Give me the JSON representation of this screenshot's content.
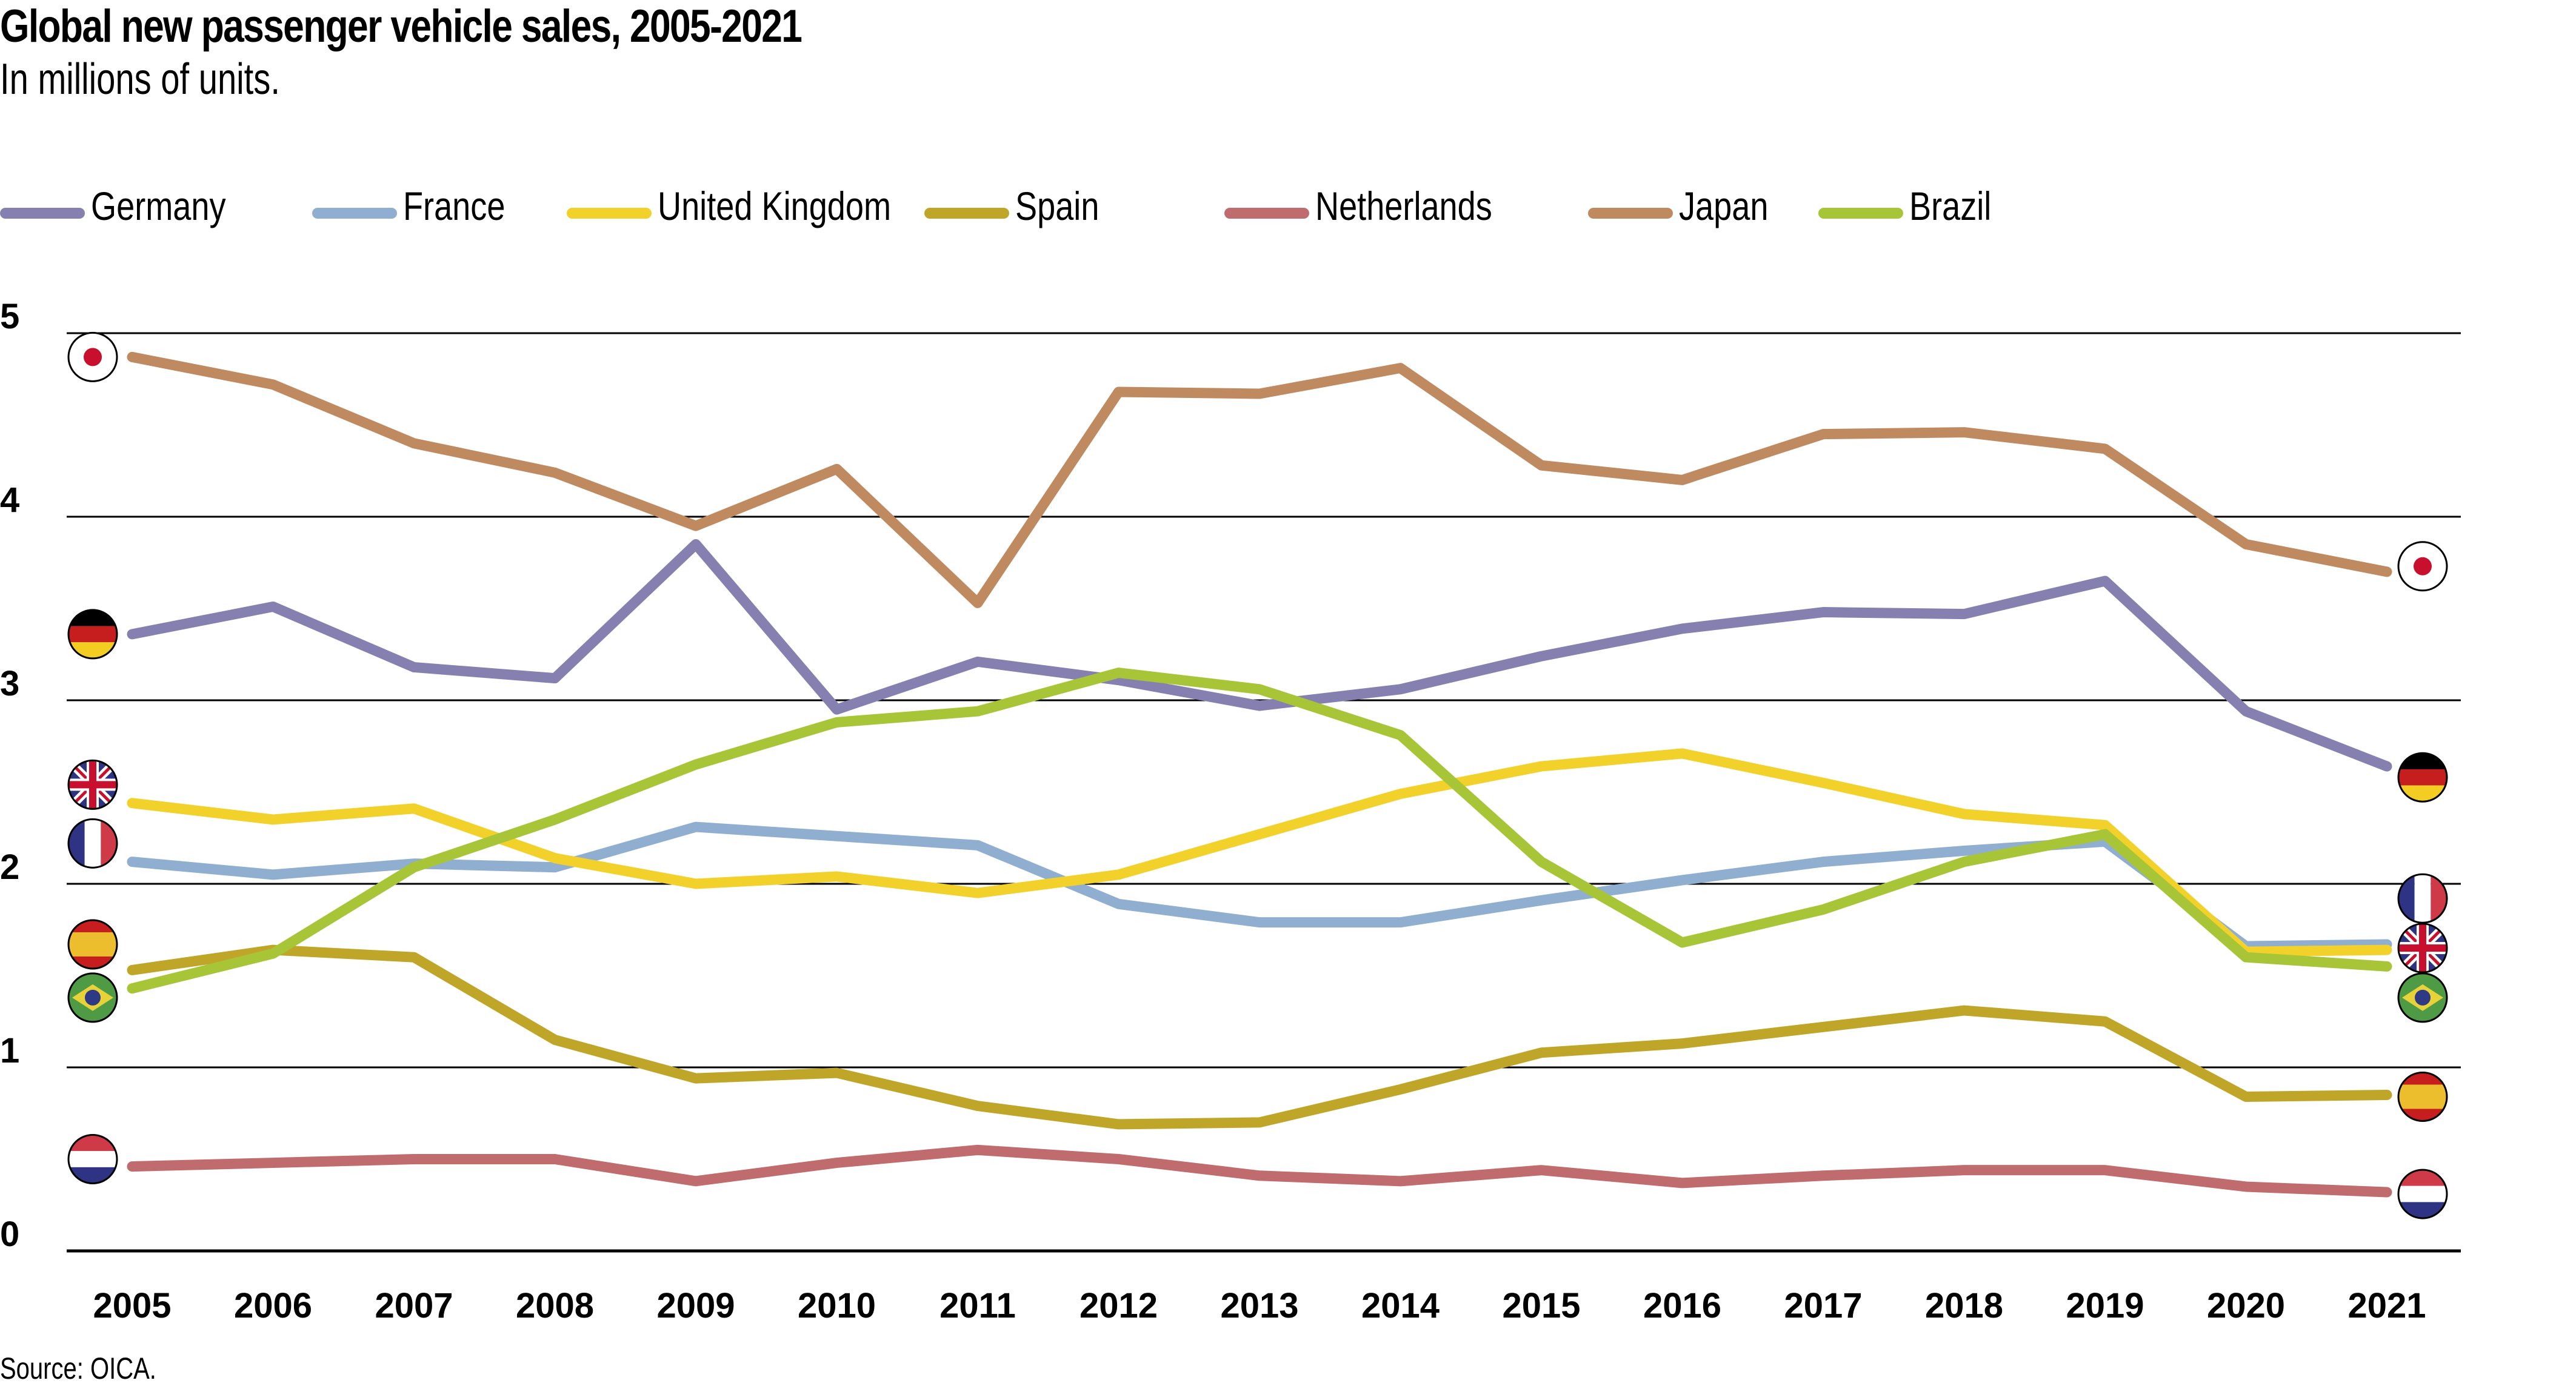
{
  "chart_data": {
    "type": "line",
    "title": "Global new passenger vehicle sales, 2005-2021",
    "subtitle": "In millions of units.",
    "source": "Source: OICA.",
    "xlabel": "",
    "ylabel": "",
    "ylim": [
      0,
      5
    ],
    "yticks": [
      "0",
      "1",
      "2",
      "3",
      "4",
      "5"
    ],
    "grid": true,
    "legend_position": "top-left",
    "x": [
      "2005",
      "2006",
      "2007",
      "2008",
      "2009",
      "2010",
      "2011",
      "2012",
      "2013",
      "2014",
      "2015",
      "2016",
      "2017",
      "2018",
      "2019",
      "2020",
      "2021"
    ],
    "series": [
      {
        "name": "Germany",
        "color": "#8680b0",
        "flag": "germany-flag",
        "values": [
          3.36,
          3.51,
          3.18,
          3.12,
          3.85,
          2.95,
          3.21,
          3.11,
          2.97,
          3.06,
          3.24,
          3.39,
          3.48,
          3.47,
          3.65,
          2.94,
          2.64
        ]
      },
      {
        "name": "France",
        "color": "#90aed0",
        "flag": "france-flag",
        "values": [
          2.12,
          2.05,
          2.11,
          2.09,
          2.31,
          2.26,
          2.21,
          1.89,
          1.79,
          1.79,
          1.91,
          2.02,
          2.12,
          2.18,
          2.23,
          1.66,
          1.67
        ]
      },
      {
        "name": "United Kingdom",
        "color": "#f2d12a",
        "flag": "uk-flag",
        "values": [
          2.44,
          2.35,
          2.41,
          2.14,
          2.0,
          2.04,
          1.95,
          2.05,
          2.27,
          2.49,
          2.64,
          2.71,
          2.55,
          2.38,
          2.32,
          1.63,
          1.64
        ]
      },
      {
        "name": "Spain",
        "color": "#bfa628",
        "flag": "spain-flag",
        "values": [
          1.53,
          1.64,
          1.6,
          1.15,
          0.94,
          0.97,
          0.79,
          0.69,
          0.7,
          0.88,
          1.08,
          1.13,
          1.22,
          1.31,
          1.25,
          0.84,
          0.85
        ]
      },
      {
        "name": "Netherlands",
        "color": "#c06b6d",
        "flag": "netherlands-flag",
        "values": [
          0.46,
          0.48,
          0.5,
          0.5,
          0.38,
          0.48,
          0.55,
          0.5,
          0.41,
          0.38,
          0.44,
          0.37,
          0.41,
          0.44,
          0.44,
          0.35,
          0.32
        ]
      },
      {
        "name": "Japan",
        "color": "#bf8a60",
        "flag": "japan-flag",
        "values": [
          4.87,
          4.72,
          4.4,
          4.24,
          3.95,
          4.26,
          3.53,
          4.68,
          4.67,
          4.81,
          4.28,
          4.2,
          4.45,
          4.46,
          4.37,
          3.85,
          3.7
        ]
      },
      {
        "name": "Brazil",
        "color": "#a7c536",
        "flag": "brazil-flag",
        "values": [
          1.43,
          1.62,
          2.09,
          2.35,
          2.65,
          2.88,
          2.94,
          3.15,
          3.06,
          2.81,
          2.12,
          1.68,
          1.86,
          2.12,
          2.27,
          1.6,
          1.55
        ]
      }
    ]
  }
}
